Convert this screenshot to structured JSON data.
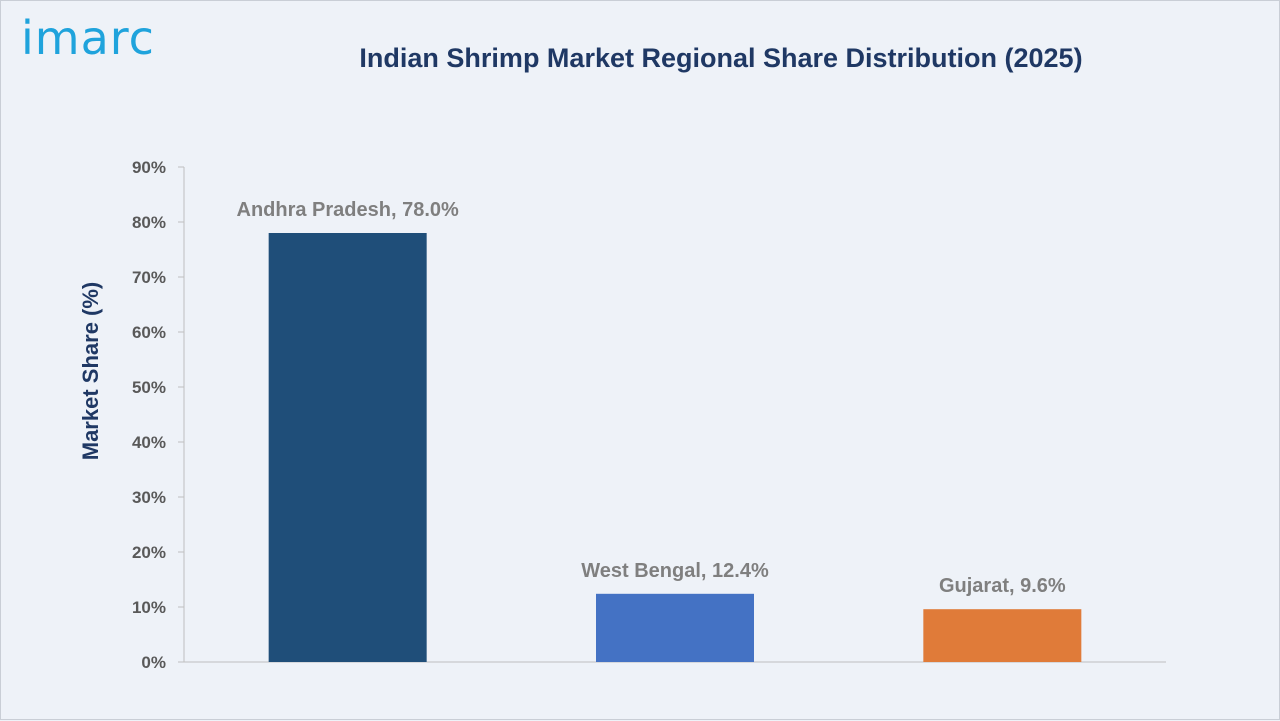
{
  "logo": {
    "text": "imarc"
  },
  "chart_data": {
    "type": "bar",
    "title": "Indian Shrimp Market Regional Share Distribution (2025)",
    "ylabel": "Market Share (%)",
    "xlabel": "",
    "ylim": [
      0,
      90
    ],
    "yticks": [
      "0%",
      "10%",
      "20%",
      "30%",
      "40%",
      "50%",
      "60%",
      "70%",
      "80%",
      "90%"
    ],
    "categories": [
      "Andhra Pradesh",
      "West Bengal",
      "Gujarat"
    ],
    "values": [
      78.0,
      12.4,
      9.6
    ],
    "data_labels": [
      "Andhra Pradesh, 78.0%",
      "West Bengal, 12.4%",
      "Gujarat, 9.6%"
    ],
    "colors": [
      "#1f4e79",
      "#4472c4",
      "#e07b39"
    ],
    "grid": false
  }
}
